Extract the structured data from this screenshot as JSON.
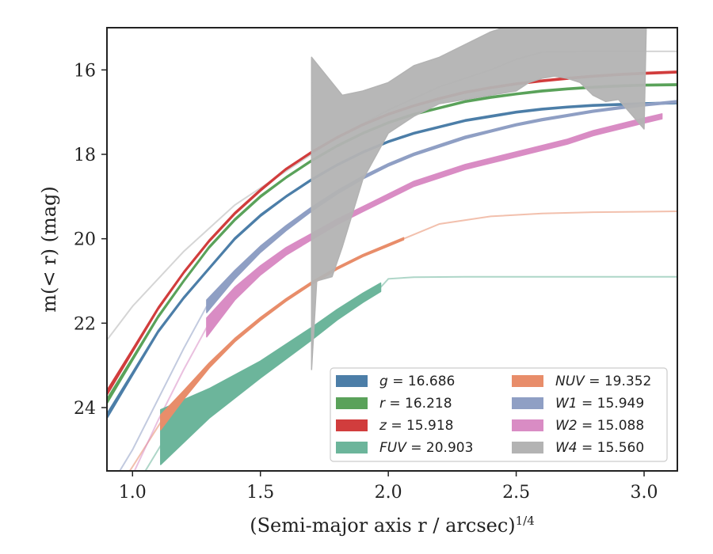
{
  "chart_data": {
    "type": "line",
    "xlabel": "(Semi-major axis r / arcsec)",
    "xlabel_exponent": "1/4",
    "ylabel": "m(< r) (mag)",
    "xlim": [
      0.9,
      3.13
    ],
    "ylim": [
      25.5,
      15.0
    ],
    "y_inverted": true,
    "xticks": [
      1.0,
      1.5,
      2.0,
      2.5,
      3.0
    ],
    "xtick_labels": [
      "1.0",
      "1.5",
      "2.0",
      "2.5",
      "3.0"
    ],
    "yticks": [
      16,
      18,
      20,
      22,
      24
    ],
    "ytick_labels": [
      "16",
      "18",
      "20",
      "22",
      "24"
    ],
    "grid": false,
    "legend_position": "lower-right",
    "series": [
      {
        "name": "g",
        "band_label": "g",
        "value_label": "16.686",
        "color": "#4c7ea8",
        "x": [
          0.9,
          1.0,
          1.1,
          1.2,
          1.3,
          1.4,
          1.5,
          1.6,
          1.7,
          1.8,
          1.9,
          2.0,
          2.1,
          2.2,
          2.3,
          2.4,
          2.5,
          2.6,
          2.7,
          2.8,
          2.9,
          3.0,
          3.13
        ],
        "y": [
          24.2,
          23.2,
          22.2,
          21.4,
          20.7,
          20.0,
          19.45,
          19.0,
          18.6,
          18.25,
          17.95,
          17.7,
          17.5,
          17.35,
          17.2,
          17.1,
          17.0,
          16.93,
          16.88,
          16.84,
          16.82,
          16.8,
          16.78
        ],
        "width": [
          0.12,
          0.08,
          0.06,
          0.05,
          0.05,
          0.05,
          0.05,
          0.04,
          0.04,
          0.04,
          0.04,
          0.04,
          0.04,
          0.04,
          0.04,
          0.04,
          0.04,
          0.04,
          0.04,
          0.04,
          0.04,
          0.04,
          0.04
        ],
        "extrapolated": {
          "x": [],
          "y": []
        }
      },
      {
        "name": "r",
        "band_label": "r",
        "value_label": "16.218",
        "color": "#5aa25a",
        "x": [
          0.9,
          1.0,
          1.1,
          1.2,
          1.3,
          1.4,
          1.5,
          1.6,
          1.7,
          1.8,
          1.9,
          2.0,
          2.1,
          2.2,
          2.3,
          2.4,
          2.5,
          2.6,
          2.7,
          2.8,
          2.9,
          3.0,
          3.13
        ],
        "y": [
          23.85,
          22.85,
          21.85,
          21.0,
          20.2,
          19.55,
          19.0,
          18.55,
          18.15,
          17.8,
          17.5,
          17.25,
          17.05,
          16.9,
          16.75,
          16.65,
          16.57,
          16.5,
          16.45,
          16.41,
          16.38,
          16.36,
          16.35
        ],
        "width": [
          0.12,
          0.08,
          0.06,
          0.05,
          0.05,
          0.05,
          0.05,
          0.04,
          0.04,
          0.04,
          0.04,
          0.04,
          0.04,
          0.04,
          0.04,
          0.04,
          0.04,
          0.04,
          0.04,
          0.04,
          0.04,
          0.04,
          0.04
        ],
        "extrapolated": {
          "x": [],
          "y": []
        }
      },
      {
        "name": "z",
        "band_label": "z",
        "value_label": "15.918",
        "color": "#d13d3d",
        "x": [
          0.9,
          1.0,
          1.1,
          1.2,
          1.3,
          1.4,
          1.5,
          1.6,
          1.7,
          1.8,
          1.9,
          2.0,
          2.1,
          2.2,
          2.3,
          2.4,
          2.5,
          2.6,
          2.7,
          2.8,
          2.9,
          3.0,
          3.13
        ],
        "y": [
          23.65,
          22.65,
          21.65,
          20.8,
          20.05,
          19.4,
          18.85,
          18.35,
          17.95,
          17.6,
          17.3,
          17.05,
          16.85,
          16.68,
          16.53,
          16.42,
          16.33,
          16.26,
          16.2,
          16.15,
          16.11,
          16.08,
          16.05
        ],
        "width": [
          0.12,
          0.08,
          0.06,
          0.05,
          0.05,
          0.05,
          0.05,
          0.04,
          0.04,
          0.04,
          0.04,
          0.04,
          0.04,
          0.04,
          0.04,
          0.04,
          0.04,
          0.04,
          0.04,
          0.04,
          0.04,
          0.04,
          0.04
        ],
        "extrapolated": {
          "x": [],
          "y": []
        }
      },
      {
        "name": "FUV",
        "band_label": "FUV",
        "value_label": "20.903",
        "color": "#6cb59b",
        "x": [
          1.11,
          1.3,
          1.5,
          1.7,
          1.8,
          1.9,
          1.97
        ],
        "y": [
          24.7,
          23.9,
          23.1,
          22.25,
          21.8,
          21.4,
          21.15
        ],
        "width": [
          1.3,
          0.7,
          0.4,
          0.3,
          0.25,
          0.22,
          0.2
        ],
        "extrapolated": {
          "x": [
            0.9,
            1.0,
            1.11
          ],
          "y": [
            27.0,
            26.0,
            24.9
          ],
          "x2": [
            1.97,
            2.0,
            2.1,
            2.3,
            2.5,
            2.7,
            3.0,
            3.13
          ],
          "y2": [
            21.15,
            20.95,
            20.91,
            20.9,
            20.9,
            20.9,
            20.9,
            20.9
          ]
        }
      },
      {
        "name": "NUV",
        "band_label": "NUV",
        "value_label": "19.352",
        "color": "#e88d6a",
        "x": [
          1.11,
          1.2,
          1.3,
          1.4,
          1.5,
          1.6,
          1.7,
          1.8,
          1.9,
          2.0,
          2.06
        ],
        "y": [
          24.35,
          23.7,
          23.0,
          22.4,
          21.9,
          21.45,
          21.05,
          20.7,
          20.4,
          20.15,
          20.0
        ],
        "width": [
          0.35,
          0.2,
          0.12,
          0.08,
          0.07,
          0.06,
          0.06,
          0.05,
          0.05,
          0.05,
          0.05
        ],
        "extrapolated": {
          "x": [
            0.9,
            1.0,
            1.11
          ],
          "y": [
            26.3,
            25.4,
            24.35
          ],
          "x2": [
            2.06,
            2.2,
            2.4,
            2.6,
            2.8,
            3.0,
            3.13
          ],
          "y2": [
            20.0,
            19.65,
            19.47,
            19.4,
            19.37,
            19.36,
            19.35
          ]
        }
      },
      {
        "name": "W1",
        "band_label": "W1",
        "value_label": "15.949",
        "color": "#8f9fc4",
        "x": [
          1.29,
          1.4,
          1.5,
          1.6,
          1.7,
          1.8,
          1.9,
          2.0,
          2.1,
          2.2,
          2.3,
          2.4,
          2.5,
          2.6,
          2.7,
          2.8,
          2.9,
          3.0,
          3.13
        ],
        "y": [
          21.6,
          20.85,
          20.25,
          19.75,
          19.3,
          18.9,
          18.55,
          18.25,
          18.0,
          17.8,
          17.6,
          17.45,
          17.3,
          17.18,
          17.08,
          16.98,
          16.9,
          16.83,
          16.75
        ],
        "width": [
          0.3,
          0.2,
          0.15,
          0.12,
          0.1,
          0.08,
          0.07,
          0.06,
          0.06,
          0.06,
          0.06,
          0.05,
          0.05,
          0.05,
          0.05,
          0.05,
          0.05,
          0.05,
          0.05
        ],
        "extrapolated": {
          "x": [
            0.9,
            1.0,
            1.1,
            1.2,
            1.29
          ],
          "y": [
            26.0,
            25.0,
            23.8,
            22.6,
            21.6
          ]
        }
      },
      {
        "name": "W2",
        "band_label": "W2",
        "value_label": "15.088",
        "color": "#d98cc4",
        "x": [
          1.29,
          1.4,
          1.5,
          1.6,
          1.7,
          1.8,
          1.9,
          2.0,
          2.1,
          2.2,
          2.3,
          2.4,
          2.5,
          2.6,
          2.7,
          2.8,
          2.9,
          3.0,
          3.07
        ],
        "y": [
          22.1,
          21.3,
          20.75,
          20.3,
          19.95,
          19.6,
          19.3,
          19.0,
          18.7,
          18.5,
          18.3,
          18.15,
          18.0,
          17.85,
          17.7,
          17.5,
          17.35,
          17.2,
          17.1
        ],
        "width": [
          0.45,
          0.3,
          0.22,
          0.18,
          0.15,
          0.13,
          0.12,
          0.12,
          0.12,
          0.12,
          0.12,
          0.12,
          0.12,
          0.12,
          0.12,
          0.12,
          0.12,
          0.12,
          0.12
        ],
        "extrapolated": {
          "x": [
            0.9,
            1.0,
            1.1,
            1.2,
            1.29
          ],
          "y": [
            26.9,
            25.6,
            24.3,
            23.1,
            22.1
          ]
        }
      },
      {
        "name": "W4",
        "band_label": "W4",
        "value_label": "15.560",
        "color": "#b3b3b3",
        "band_upper_x": [
          1.7,
          1.82,
          1.9,
          2.0,
          2.1,
          2.2,
          2.3,
          2.4,
          2.5,
          2.6,
          2.7,
          2.8,
          3.0,
          3.01
        ],
        "band_upper_y": [
          15.7,
          16.6,
          16.5,
          16.3,
          15.9,
          15.7,
          15.4,
          15.1,
          14.9,
          14.7,
          14.6,
          14.5,
          14.5,
          14.5
        ],
        "band_lower_x": [
          1.7,
          1.72,
          1.78,
          1.82,
          1.9,
          2.0,
          2.1,
          2.2,
          2.3,
          2.4,
          2.5,
          2.55,
          2.6,
          2.65,
          2.7,
          2.75,
          2.8,
          2.85,
          2.9,
          3.0,
          3.01
        ],
        "band_lower_y": [
          23.1,
          21.0,
          20.9,
          20.2,
          18.6,
          17.5,
          17.1,
          16.8,
          16.7,
          16.6,
          16.5,
          16.3,
          16.2,
          16.15,
          16.2,
          16.3,
          16.6,
          16.75,
          16.7,
          17.4,
          14.5
        ],
        "extrapolated": {
          "x": [
            0.9,
            1.0,
            1.2,
            1.4,
            1.6,
            1.8,
            2.0,
            2.2,
            2.4,
            2.5,
            2.6,
            2.8,
            3.0,
            3.13
          ],
          "y": [
            22.4,
            21.6,
            20.3,
            19.2,
            18.4,
            17.6,
            16.95,
            16.4,
            16.0,
            15.75,
            15.58,
            15.56,
            15.56,
            15.56
          ]
        }
      }
    ]
  }
}
